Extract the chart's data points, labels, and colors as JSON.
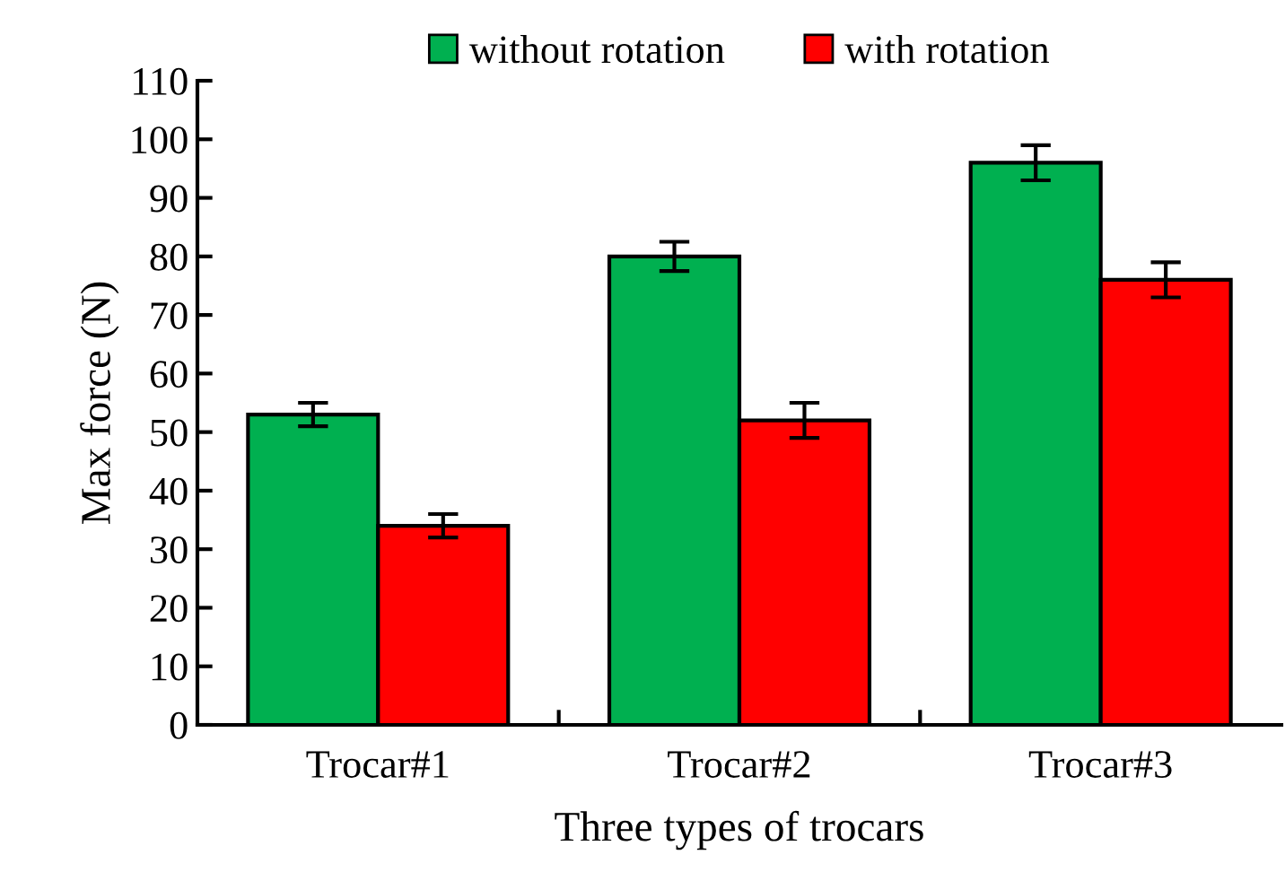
{
  "chart_data": {
    "type": "bar",
    "xlabel": "Three types of trocars",
    "ylabel": "Max force (N)",
    "categories": [
      "Trocar#1",
      "Trocar#2",
      "Trocar#3"
    ],
    "series": [
      {
        "name": "without rotation",
        "color": "#00b050",
        "values": [
          53,
          80,
          96
        ],
        "errors": [
          2,
          2.5,
          3
        ]
      },
      {
        "name": "with rotation",
        "color": "#ff0000",
        "values": [
          34,
          52,
          76
        ],
        "errors": [
          2,
          3,
          3
        ]
      }
    ],
    "ylim": [
      0,
      110
    ],
    "yticks": [
      0,
      10,
      20,
      30,
      40,
      50,
      60,
      70,
      80,
      90,
      100,
      110
    ],
    "grid": false,
    "legend": "top"
  }
}
